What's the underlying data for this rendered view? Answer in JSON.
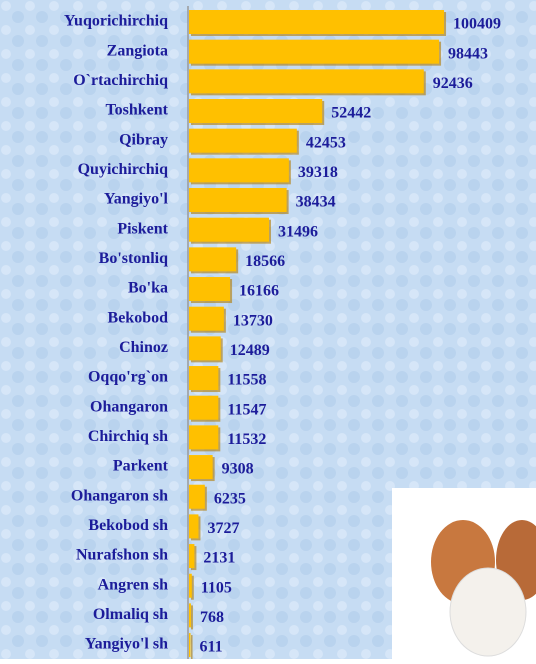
{
  "chart_data": {
    "type": "bar",
    "orientation": "horizontal",
    "categories": [
      "Yuqorichirchiq",
      "Zangiota",
      "O`rtachirchiq",
      "Toshkent",
      "Qibray",
      "Quyichirchiq",
      "Yangiyo'l",
      "Piskent",
      "Bo'stonliq",
      "Bo'ka",
      "Bekobod",
      "Chinoz",
      "Oqqo'rg`on",
      "Ohangaron",
      "Chirchiq sh",
      "Parkent",
      "Ohangaron sh",
      "Bekobod sh",
      "Nurafshon sh",
      "Angren sh",
      "Olmaliq sh",
      "Yangiyo'l sh"
    ],
    "values": [
      100409,
      98443,
      92436,
      52442,
      42453,
      39318,
      38434,
      31496,
      18566,
      16166,
      13730,
      12489,
      11558,
      11547,
      11532,
      9308,
      6235,
      3727,
      2131,
      1105,
      768,
      611
    ],
    "color": "#ffc000",
    "xlim": [
      0,
      100000
    ]
  }
}
